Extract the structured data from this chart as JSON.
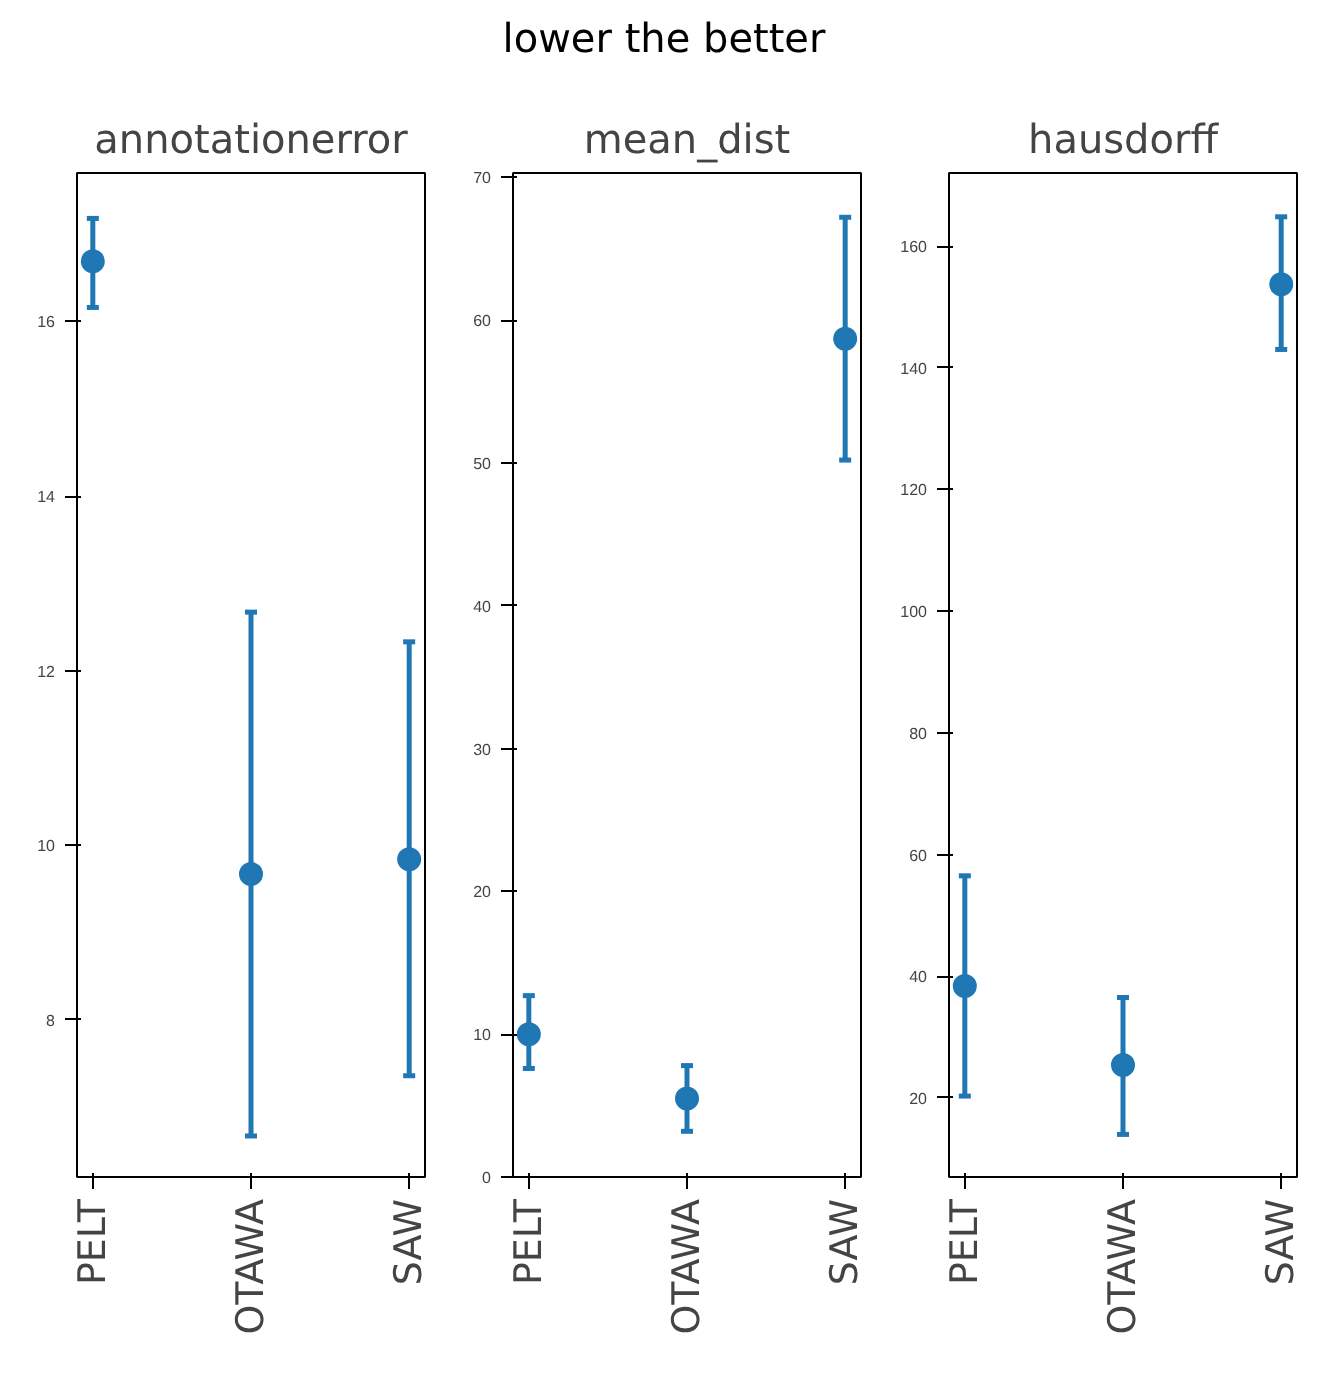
{
  "chart_data": [
    {
      "type": "scatter",
      "title": "annotationerror",
      "annotations": [
        "lower the better"
      ],
      "categories": [
        "PELT",
        "OTAWA",
        "SAW"
      ],
      "marker": "circle",
      "grid": false,
      "series": [
        {
          "color": "#1f77b4",
          "values": [
            16.69,
            9.67,
            9.84
          ],
          "errors": [
            [
              16.16,
              17.18
            ],
            [
              6.67,
              12.67
            ],
            [
              7.36,
              12.33
            ]
          ]
        }
      ],
      "ylim": [
        6.2,
        17.7
      ],
      "yticks": [
        8,
        10,
        12,
        14,
        16
      ]
    },
    {
      "type": "scatter",
      "title": "mean_dist",
      "categories": [
        "PELT",
        "OTAWA",
        "SAW"
      ],
      "marker": "circle",
      "grid": false,
      "series": [
        {
          "color": "#1f77b4",
          "values": [
            10.0,
            5.5,
            58.7
          ],
          "errors": [
            [
              7.6,
              12.7
            ],
            [
              3.2,
              7.8
            ],
            [
              50.2,
              67.2
            ]
          ]
        }
      ],
      "ylim": [
        0,
        70.3
      ],
      "yticks": [
        0,
        10,
        20,
        30,
        40,
        50,
        60,
        70
      ]
    },
    {
      "type": "scatter",
      "title": "hausdorff",
      "categories": [
        "PELT",
        "OTAWA",
        "SAW"
      ],
      "marker": "circle",
      "grid": false,
      "series": [
        {
          "color": "#1f77b4",
          "values": [
            38.4,
            25.4,
            153.7
          ],
          "errors": [
            [
              20.3,
              56.5
            ],
            [
              14,
              36.5
            ],
            [
              143,
              164.8
            ]
          ]
        }
      ],
      "ylim": [
        7,
        172
      ],
      "yticks": [
        20,
        40,
        60,
        80,
        100,
        120,
        140,
        160
      ]
    }
  ]
}
